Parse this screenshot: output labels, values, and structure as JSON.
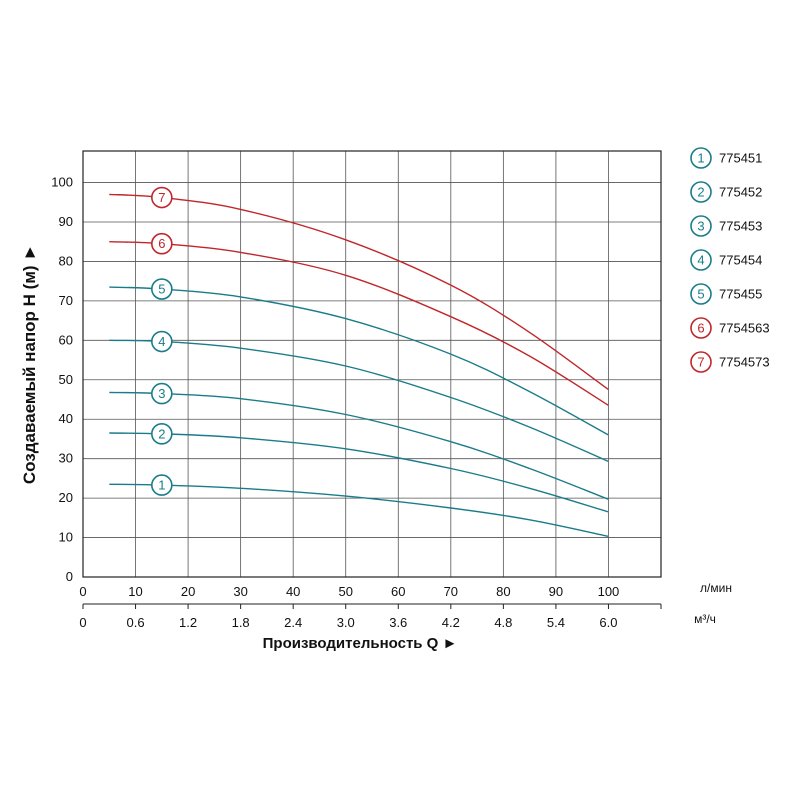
{
  "chart_data": {
    "type": "line",
    "ylabel": "Создаваемый напор H (м) ►",
    "xlabel": "Производительность Q ►",
    "x_unit_primary": "л/мин",
    "x_unit_secondary": "м³/ч",
    "ylim": [
      0,
      100
    ],
    "xlim": [
      0,
      110
    ],
    "y_ticks": [
      "0",
      "10",
      "20",
      "30",
      "40",
      "50",
      "60",
      "70",
      "80",
      "90",
      "100"
    ],
    "x_ticks_primary": [
      "0",
      "10",
      "20",
      "30",
      "40",
      "50",
      "60",
      "70",
      "80",
      "90",
      "100"
    ],
    "x_ticks_secondary": [
      "0",
      "0.6",
      "1.2",
      "1.8",
      "2.4",
      "3.0",
      "3.6",
      "4.2",
      "4.8",
      "5.4",
      "6.0"
    ],
    "grid": true,
    "legend_position": "right",
    "colors": {
      "teal": "#1a7c8a",
      "red": "#c0262a"
    },
    "series": [
      {
        "name": "775451",
        "marker": "1",
        "color": "#1a7c8a",
        "x": [
          5,
          15,
          30,
          50,
          70,
          85,
          100
        ],
        "y": [
          23.5,
          23.3,
          22.5,
          20.5,
          17.5,
          14.5,
          10.3
        ]
      },
      {
        "name": "775452",
        "marker": "2",
        "color": "#1a7c8a",
        "x": [
          5,
          15,
          30,
          50,
          70,
          85,
          100
        ],
        "y": [
          36.5,
          36.3,
          35.3,
          32.5,
          27.5,
          22.5,
          16.5
        ]
      },
      {
        "name": "775453",
        "marker": "3",
        "color": "#1a7c8a",
        "x": [
          5,
          15,
          30,
          50,
          70,
          85,
          100
        ],
        "y": [
          46.8,
          46.5,
          45.2,
          41.2,
          34.3,
          27.5,
          19.7
        ]
      },
      {
        "name": "775454",
        "marker": "4",
        "color": "#1a7c8a",
        "x": [
          5,
          15,
          30,
          50,
          70,
          85,
          100
        ],
        "y": [
          60.0,
          59.7,
          58.0,
          53.5,
          45.5,
          38.0,
          29.3
        ]
      },
      {
        "name": "775455",
        "marker": "5",
        "color": "#1a7c8a",
        "x": [
          5,
          15,
          30,
          50,
          70,
          85,
          100
        ],
        "y": [
          73.5,
          73.0,
          71.0,
          65.5,
          56.5,
          47.0,
          36.0
        ]
      },
      {
        "name": "7754563",
        "marker": "6",
        "color": "#c0262a",
        "x": [
          5,
          15,
          30,
          50,
          70,
          85,
          100
        ],
        "y": [
          85.0,
          84.5,
          82.3,
          76.5,
          66.0,
          56.0,
          43.5
        ]
      },
      {
        "name": "7754573",
        "marker": "7",
        "color": "#c0262a",
        "x": [
          5,
          15,
          30,
          50,
          70,
          85,
          100
        ],
        "y": [
          97.0,
          96.2,
          93.2,
          85.5,
          74.0,
          62.0,
          47.5
        ]
      }
    ]
  }
}
